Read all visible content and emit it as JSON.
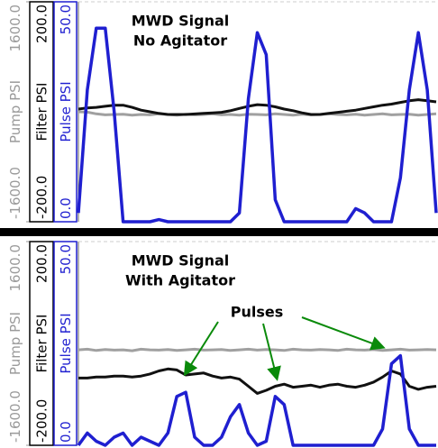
{
  "chart_data": [
    {
      "type": "line",
      "title": "MWD Signal",
      "subtitle": "No Agitator",
      "ylabel": "Pulse PSI",
      "ycolor": "#1f1fd0",
      "ylim": [
        0,
        50
      ],
      "yticks": [
        {
          "value": 0,
          "label": "0.0"
        },
        {
          "value": 50,
          "label": "50.0"
        }
      ],
      "y2label": "Filter PSI",
      "y2color": "#000000",
      "y2lim": [
        -200,
        200
      ],
      "y2ticks": [
        {
          "value": -200,
          "label": "-200.0"
        },
        {
          "value": 200,
          "label": "200.0"
        }
      ],
      "y3label": "Pump PSI",
      "y3color": "#9a9a9a",
      "y3lim": [
        -1600,
        1600
      ],
      "y3ticks": [
        {
          "value": -1600,
          "label": "-1600.0"
        },
        {
          "value": 1600,
          "label": "1600.0"
        }
      ],
      "series": [
        {
          "color": "#a0a0a0",
          "axis": "y3",
          "values": [
            0,
            -5,
            -30,
            -45,
            -40,
            -35,
            -50,
            -40,
            -45,
            -30,
            -40,
            -50,
            -35,
            -45,
            -40,
            -30,
            -45,
            -40,
            -50,
            -35,
            -40,
            -45,
            -30,
            -40,
            -50,
            -35,
            -45,
            -40,
            -30,
            -40,
            -45,
            -35,
            -50,
            -40,
            -30,
            -45,
            -40,
            -35,
            -50,
            -40,
            -30
          ]
        },
        {
          "color": "#111111",
          "axis": "y2",
          "values": [
            5,
            7,
            8,
            10,
            12,
            12,
            8,
            3,
            0,
            -3,
            -5,
            -5,
            -5,
            -4,
            -3,
            -2,
            -1,
            2,
            6,
            10,
            13,
            12,
            9,
            5,
            2,
            -2,
            -5,
            -5,
            -3,
            -1,
            1,
            3,
            6,
            9,
            12,
            14,
            17,
            20,
            22,
            20,
            18
          ]
        },
        {
          "color": "#1f1fd0",
          "axis": "y",
          "values": [
            2,
            30,
            44,
            44,
            25,
            0,
            0,
            0,
            0,
            0.5,
            0,
            0,
            0,
            0,
            0,
            0,
            0,
            0,
            2,
            28,
            43,
            38,
            5,
            0,
            0,
            0,
            0,
            0,
            0,
            0,
            0,
            3,
            2,
            0,
            0,
            0,
            10,
            30,
            43,
            30,
            2
          ]
        }
      ]
    },
    {
      "type": "line",
      "title": "MWD Signal",
      "subtitle": "With Agitator",
      "annotation": "Pulses",
      "annotation_color": "#0a8a0a",
      "ylabel": "Pulse PSI",
      "ycolor": "#1f1fd0",
      "ylim": [
        0,
        50
      ],
      "yticks": [
        {
          "value": 0,
          "label": "0.0"
        },
        {
          "value": 50,
          "label": "50.0"
        }
      ],
      "y2label": "Filter PSI",
      "y2color": "#000000",
      "y2lim": [
        -200,
        200
      ],
      "y2ticks": [
        {
          "value": -200,
          "label": "-200.0"
        },
        {
          "value": 200,
          "label": "200.0"
        }
      ],
      "y3label": "Pump PSI",
      "y3color": "#9a9a9a",
      "y3lim": [
        -1600,
        1600
      ],
      "y3ticks": [
        {
          "value": -1600,
          "label": "-1600.0"
        },
        {
          "value": 1600,
          "label": "1600.0"
        }
      ],
      "series": [
        {
          "color": "#a0a0a0",
          "axis": "y3",
          "values": [
            -100,
            -90,
            -110,
            -95,
            -105,
            -100,
            -115,
            -90,
            -100,
            -105,
            -95,
            -110,
            -100,
            -90,
            -105,
            -100,
            -95,
            -110,
            -100,
            -90,
            -105,
            -95,
            -100,
            -110,
            -90,
            -100,
            -105,
            -95,
            -100,
            -110,
            -90,
            -100,
            -105,
            -95,
            -110,
            -100,
            -90,
            -105,
            -100,
            -95,
            -100
          ]
        },
        {
          "color": "#111111",
          "axis": "y2",
          "values": [
            -68,
            -68,
            -66,
            -66,
            -64,
            -64,
            -66,
            -64,
            -60,
            -54,
            -50,
            -52,
            -62,
            -60,
            -58,
            -64,
            -68,
            -66,
            -70,
            -84,
            -98,
            -92,
            -84,
            -80,
            -86,
            -84,
            -82,
            -86,
            -82,
            -80,
            -84,
            -86,
            -82,
            -76,
            -66,
            -54,
            -60,
            -84,
            -90,
            -86,
            -84
          ]
        },
        {
          "color": "#1f1fd0",
          "axis": "y",
          "values": [
            0,
            3,
            1,
            0,
            2,
            3,
            0,
            2,
            1,
            0,
            3,
            12,
            13,
            2,
            0,
            0,
            2,
            7,
            10,
            3,
            0,
            1,
            12,
            10,
            0,
            0,
            0,
            0,
            0,
            0,
            0,
            0,
            0,
            0,
            4,
            20,
            22,
            4,
            0,
            0,
            0
          ]
        }
      ]
    }
  ]
}
